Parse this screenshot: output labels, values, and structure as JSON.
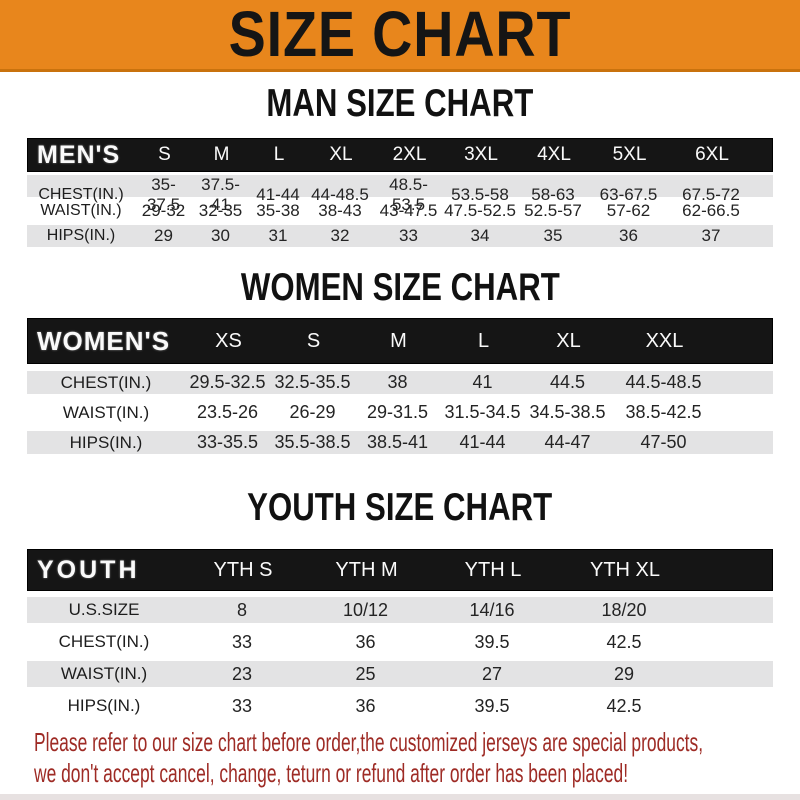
{
  "banner": {
    "title": "SIZE CHART"
  },
  "sections": [
    {
      "heading": "MAN SIZE CHART",
      "label": "MEN'S",
      "columns": [
        "S",
        "M",
        "L",
        "XL",
        "2XL",
        "3XL",
        "4XL",
        "5XL",
        "6XL"
      ],
      "rows": [
        {
          "label": "CHEST(IN.)",
          "values": [
            "35-37.5",
            "37.5-41",
            "41-44",
            "44-48.5",
            "48.5-53.5",
            "53.5-58",
            "58-63",
            "63-67.5",
            "67.5-72"
          ]
        },
        {
          "label": "WAIST(IN.)",
          "values": [
            "29-32",
            "32-35",
            "35-38",
            "38-43",
            "43-47.5",
            "47.5-52.5",
            "52.5-57",
            "57-62",
            "62-66.5"
          ]
        },
        {
          "label": "HIPS(IN.)",
          "values": [
            "29",
            "30",
            "31",
            "32",
            "33",
            "34",
            "35",
            "36",
            "37"
          ]
        }
      ]
    },
    {
      "heading": "WOMEN SIZE CHART",
      "label": "WOMEN'S",
      "columns": [
        "XS",
        "S",
        "M",
        "L",
        "XL",
        "XXL"
      ],
      "rows": [
        {
          "label": "CHEST(IN.)",
          "values": [
            "29.5-32.5",
            "32.5-35.5",
            "38",
            "41",
            "44.5",
            "44.5-48.5"
          ]
        },
        {
          "label": "WAIST(IN.)",
          "values": [
            "23.5-26",
            "26-29",
            "29-31.5",
            "31.5-34.5",
            "34.5-38.5",
            "38.5-42.5"
          ]
        },
        {
          "label": "HIPS(IN.)",
          "values": [
            "33-35.5",
            "35.5-38.5",
            "38.5-41",
            "41-44",
            "44-47",
            "47-50"
          ]
        }
      ]
    },
    {
      "heading": "YOUTH SIZE CHART",
      "label": "YOUTH",
      "columns": [
        "YTH S",
        "YTH M",
        "YTH L",
        "YTH XL"
      ],
      "rows": [
        {
          "label": "U.S.SIZE",
          "values": [
            "8",
            "10/12",
            "14/16",
            "18/20"
          ]
        },
        {
          "label": "CHEST(IN.)",
          "values": [
            "33",
            "36",
            "39.5",
            "42.5"
          ]
        },
        {
          "label": "WAIST(IN.)",
          "values": [
            "23",
            "25",
            "27",
            "29"
          ]
        },
        {
          "label": "HIPS(IN.)",
          "values": [
            "33",
            "36",
            "39.5",
            "42.5"
          ]
        }
      ]
    }
  ],
  "footer": {
    "line1": "Please refer to our size chart before order,the customized jerseys are special products,",
    "line2": "we don't accept cancel, change, teturn or refund after order has been placed!"
  },
  "colors": {
    "banner-bg": "#E8861C",
    "banner-edge": "#C9720D",
    "bar-bg": "#151515",
    "row-gray": "#E3E3E4",
    "footer-red": "#9E2B25"
  }
}
